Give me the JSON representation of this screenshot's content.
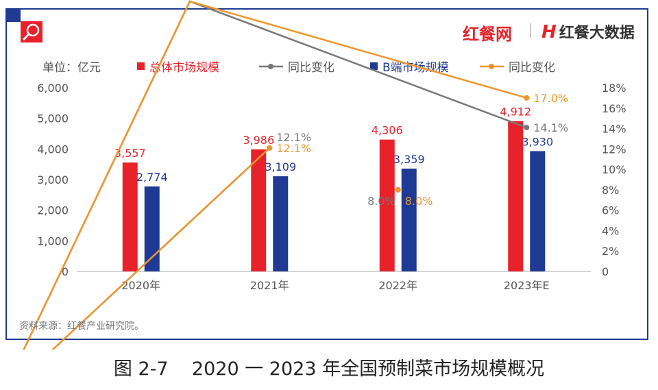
{
  "brand": {
    "site": "红餐网",
    "data": "红餐大数据",
    "logo_letter": "H"
  },
  "unit_label": "单位：亿元",
  "source": "资料来源：红餐产业研究院。",
  "caption": "图 2-7    2020 一 2023 年全国预制菜市场规模概况",
  "icons": {
    "magnifier": "magnifier-icon"
  },
  "chart_data": {
    "type": "bar",
    "categories": [
      "2020年",
      "2021年",
      "2022年",
      "2023年E"
    ],
    "series": [
      {
        "name": "总体市场规模",
        "type": "bar",
        "axis": "left",
        "color": "#e8222a",
        "values": [
          3557,
          3986,
          4306,
          4912
        ],
        "labels": [
          "3,557",
          "3,986",
          "4,306",
          "4,912"
        ]
      },
      {
        "name": "B端市场规模",
        "type": "bar",
        "axis": "left",
        "color": "#1f3a93",
        "values": [
          2774,
          3109,
          3359,
          3930
        ],
        "labels": [
          "2,774",
          "3,109",
          "3,359",
          "3,930"
        ]
      },
      {
        "name": "同比变化",
        "type": "line",
        "axis": "right",
        "color": "#777777",
        "values": [
          null,
          12.1,
          8.0,
          14.1
        ],
        "labels": [
          null,
          "12.1%",
          "8.0%",
          "14.1%"
        ]
      },
      {
        "name": "同比变化",
        "type": "line",
        "axis": "right",
        "color": "#f0962d",
        "values": [
          null,
          12.1,
          8.0,
          17.0
        ],
        "labels": [
          null,
          "12.1%",
          "8.0%",
          "17.0%"
        ]
      }
    ],
    "y_left": {
      "range": [
        0,
        6000
      ],
      "ticks": [
        "0",
        "1,000",
        "2,000",
        "3,000",
        "4,000",
        "5,000",
        "6,000"
      ]
    },
    "y_right": {
      "range": [
        0,
        18
      ],
      "ticks": [
        "0",
        "2%",
        "4%",
        "6%",
        "8%",
        "10%",
        "12%",
        "14%",
        "16%",
        "18%"
      ]
    },
    "grid": false,
    "legend_placement": "top"
  }
}
